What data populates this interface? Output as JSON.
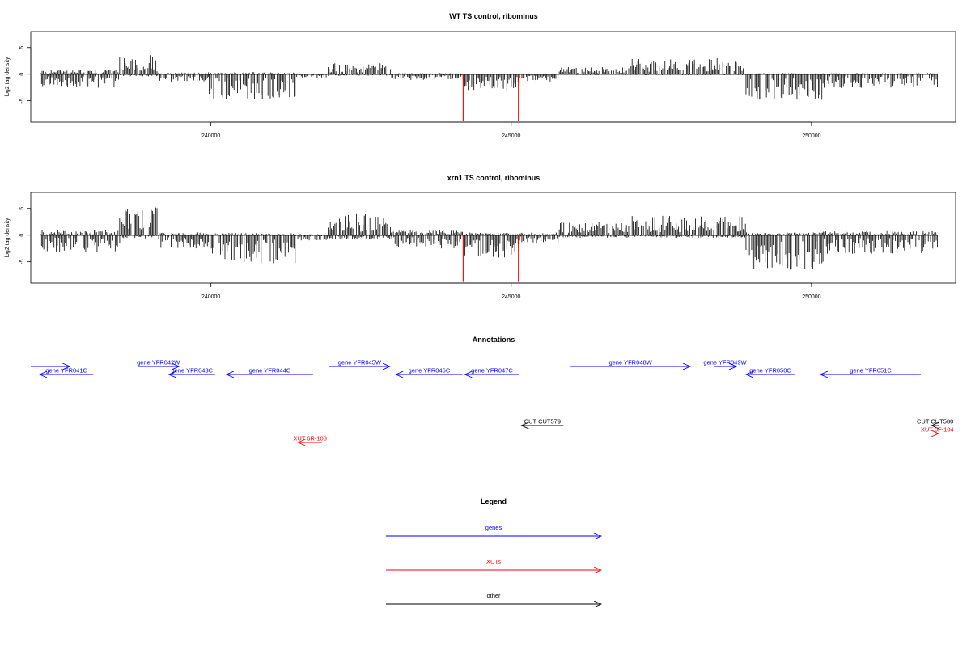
{
  "colors": {
    "black": "#000000",
    "red": "#ff0000",
    "blue": "#0000ff"
  },
  "chart_data": [
    {
      "type": "bar",
      "title": "WT TS control, ribominus",
      "ylabel": "log2 tag density",
      "xlim": [
        237000,
        252400
      ],
      "ylim": [
        -9,
        8
      ],
      "x_ticks": [
        240000,
        245000,
        250000
      ],
      "x_tick_labels": [
        "240000",
        "245000",
        "250000"
      ],
      "y_ticks": [
        -5,
        0,
        5
      ],
      "y_tick_labels": [
        "-5",
        "0",
        "5"
      ],
      "segments": [
        {
          "from": 237170,
          "to": 238480,
          "pos": 0.8,
          "neg": -2.6
        },
        {
          "from": 238480,
          "to": 239120,
          "pos": 3.6,
          "neg": -0.4
        },
        {
          "from": 239120,
          "to": 239960,
          "pos": 0.3,
          "neg": -1.5
        },
        {
          "from": 239960,
          "to": 241400,
          "pos": 0.4,
          "neg": -4.8
        },
        {
          "from": 241400,
          "to": 241950,
          "pos": 0.0,
          "neg": -0.7
        },
        {
          "from": 241950,
          "to": 243000,
          "pos": 2.2,
          "neg": -0.3
        },
        {
          "from": 243000,
          "to": 244200,
          "pos": 0.2,
          "neg": -1.1
        },
        {
          "from": 244200,
          "to": 245130,
          "pos": 0.1,
          "neg": -3.2
        },
        {
          "from": 245130,
          "to": 245800,
          "pos": 0.1,
          "neg": -1.4
        },
        {
          "from": 245800,
          "to": 246900,
          "pos": 1.4,
          "neg": -0.2
        },
        {
          "from": 246900,
          "to": 248900,
          "pos": 3.0,
          "neg": -0.2
        },
        {
          "from": 248900,
          "to": 250200,
          "pos": 0.2,
          "neg": -4.8
        },
        {
          "from": 250200,
          "to": 252100,
          "pos": 0.2,
          "neg": -2.6
        }
      ],
      "highlights": [
        {
          "x": 244200,
          "y": -8.8
        },
        {
          "x": 245120,
          "y": -8.8
        }
      ]
    },
    {
      "type": "bar",
      "title": "xrn1 TS control, ribominus",
      "ylabel": "log2 tag density",
      "xlim": [
        237000,
        252400
      ],
      "ylim": [
        -9,
        8
      ],
      "x_ticks": [
        240000,
        245000,
        250000
      ],
      "x_tick_labels": [
        "240000",
        "245000",
        "250000"
      ],
      "y_ticks": [
        -5,
        0,
        5
      ],
      "y_tick_labels": [
        "-5",
        "0",
        "5"
      ],
      "segments": [
        {
          "from": 237170,
          "to": 238480,
          "pos": 1.0,
          "neg": -3.3
        },
        {
          "from": 238480,
          "to": 239120,
          "pos": 5.2,
          "neg": -0.6
        },
        {
          "from": 239120,
          "to": 239960,
          "pos": 0.5,
          "neg": -2.5
        },
        {
          "from": 239960,
          "to": 241400,
          "pos": 0.4,
          "neg": -5.5
        },
        {
          "from": 241400,
          "to": 241950,
          "pos": 0.2,
          "neg": -1.0
        },
        {
          "from": 241950,
          "to": 243000,
          "pos": 4.2,
          "neg": -0.8
        },
        {
          "from": 243000,
          "to": 244200,
          "pos": 1.0,
          "neg": -2.5
        },
        {
          "from": 244200,
          "to": 245130,
          "pos": 0.5,
          "neg": -4.5
        },
        {
          "from": 245130,
          "to": 245800,
          "pos": 0.5,
          "neg": -1.6
        },
        {
          "from": 245800,
          "to": 246900,
          "pos": 2.5,
          "neg": -0.5
        },
        {
          "from": 246900,
          "to": 248900,
          "pos": 3.8,
          "neg": -0.5
        },
        {
          "from": 248900,
          "to": 250200,
          "pos": 0.5,
          "neg": -6.5
        },
        {
          "from": 250200,
          "to": 252100,
          "pos": 0.8,
          "neg": -3.5
        }
      ],
      "highlights": [
        {
          "x": 244200,
          "y": -8.8
        },
        {
          "x": 245120,
          "y": -8.8
        }
      ]
    }
  ],
  "annotations": {
    "title": "Annotations",
    "features": [
      {
        "label": "",
        "type": "gene",
        "strand": "+",
        "start": 237000,
        "end": 237650,
        "row": 0
      },
      {
        "label": "gene YFR041C",
        "type": "gene",
        "strand": "-",
        "start": 237150,
        "end": 238040,
        "row": 1
      },
      {
        "label": "gene YFR042W",
        "type": "gene",
        "strand": "+",
        "start": 238780,
        "end": 239470,
        "row": 0
      },
      {
        "label": "gene YFR043C",
        "type": "gene",
        "strand": "-",
        "start": 239300,
        "end": 240070,
        "row": 1
      },
      {
        "label": "gene YFR044C",
        "type": "gene",
        "strand": "-",
        "start": 240260,
        "end": 241700,
        "row": 1
      },
      {
        "label": "gene YFR045W",
        "type": "gene",
        "strand": "+",
        "start": 241970,
        "end": 242980,
        "row": 0
      },
      {
        "label": "gene YFR046C",
        "type": "gene",
        "strand": "-",
        "start": 243080,
        "end": 244190,
        "row": 1
      },
      {
        "label": "gene YFR047C",
        "type": "gene",
        "strand": "-",
        "start": 244230,
        "end": 245130,
        "row": 1
      },
      {
        "label": "gene YFR048W",
        "type": "gene",
        "strand": "+",
        "start": 245990,
        "end": 247980,
        "row": 0
      },
      {
        "label": "gene YFR049W",
        "type": "gene",
        "strand": "+",
        "start": 248370,
        "end": 248750,
        "row": 0
      },
      {
        "label": "gene YFR050C",
        "type": "gene",
        "strand": "-",
        "start": 248910,
        "end": 249720,
        "row": 1
      },
      {
        "label": "gene YFR051C",
        "type": "gene",
        "strand": "-",
        "start": 250150,
        "end": 251820,
        "row": 1
      },
      {
        "label": "CUT CUT579",
        "type": "other",
        "strand": "-",
        "start": 245170,
        "end": 245870,
        "row": 2
      },
      {
        "label": "CUT CUT580",
        "type": "other",
        "strand": "-",
        "start": 252000,
        "end": 252130,
        "row": 2
      },
      {
        "label": "XUT 6R-108",
        "type": "XUT",
        "strand": "-",
        "start": 241450,
        "end": 241850,
        "row": 4
      },
      {
        "label": "XUT 6F-104",
        "type": "XUT",
        "strand": "+",
        "start": 252070,
        "end": 252400,
        "row": 3
      }
    ]
  },
  "legend": {
    "title": "Legend",
    "items": [
      {
        "label": "genes",
        "color": "#0000ff"
      },
      {
        "label": "XUTs",
        "color": "#ff0000"
      },
      {
        "label": "other",
        "color": "#000000"
      }
    ]
  }
}
